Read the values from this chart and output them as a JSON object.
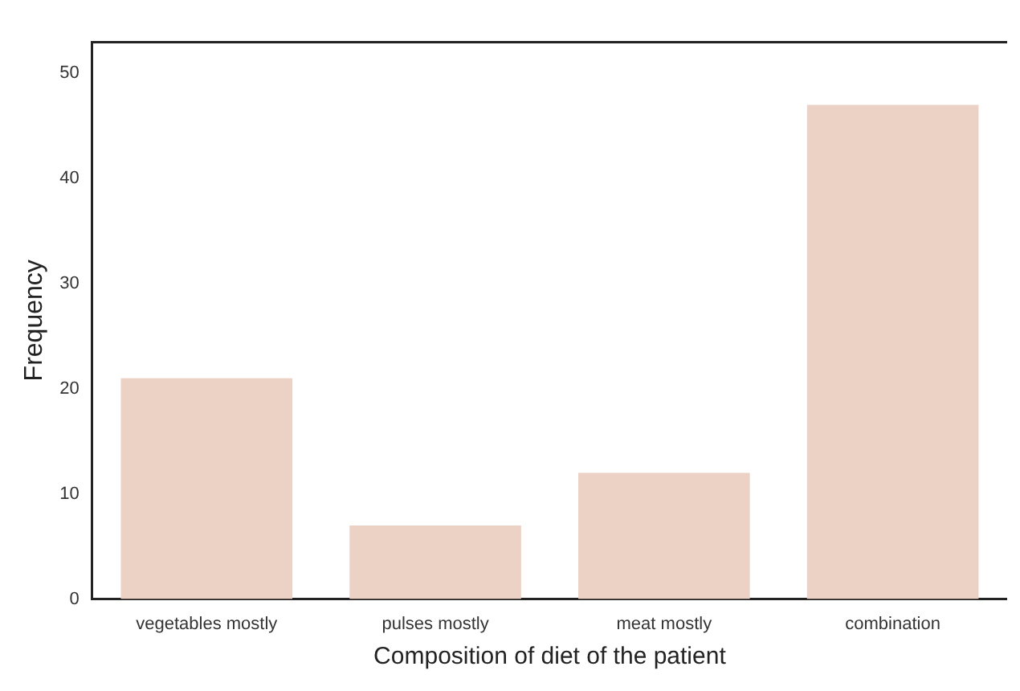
{
  "chart_data": {
    "type": "bar",
    "xlabel": "Composition of diet of the patient",
    "ylabel": "Frequency",
    "categories": [
      "vegetables mostly",
      "pulses mostly",
      "meat mostly",
      "combination"
    ],
    "values": [
      21,
      7,
      12,
      47
    ],
    "color": "#ecd1c5",
    "ylim": [
      0,
      53
    ],
    "yticks": [
      0,
      10,
      20,
      30,
      40,
      50
    ],
    "grid": false,
    "legend": false
  }
}
